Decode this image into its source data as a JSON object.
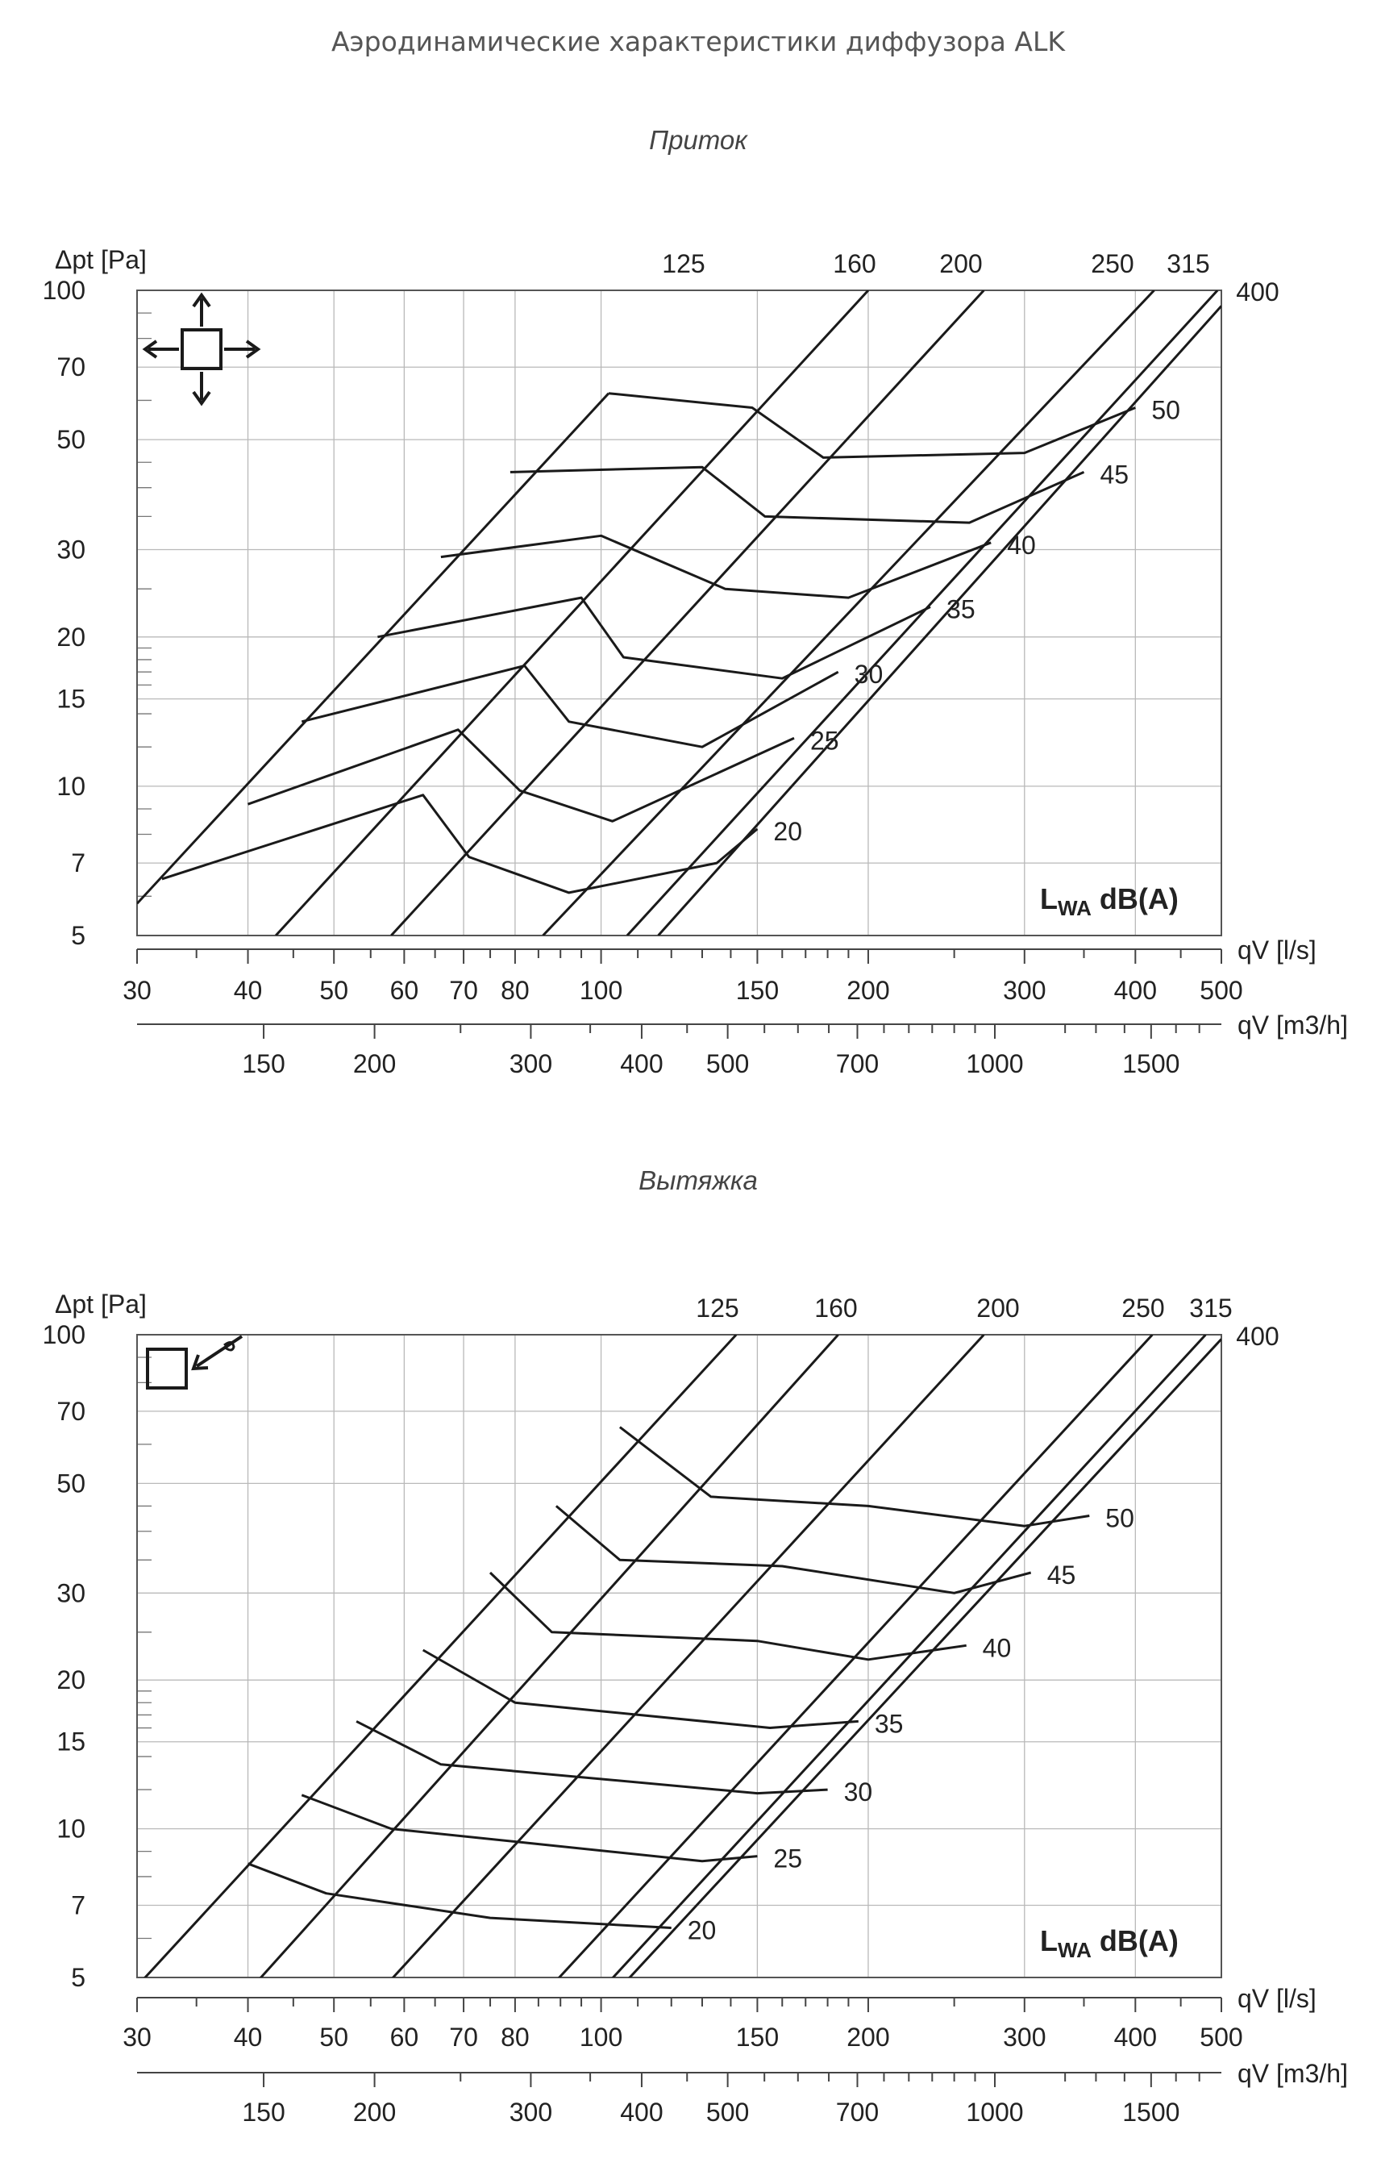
{
  "page": {
    "title": "Аэродинамические характеристики диффузора ALK"
  },
  "chart_data": [
    {
      "type": "line",
      "subtitle": "Приток",
      "xlabel": "qV [l/s]",
      "xlabel_m3h": "qV [m3/h]",
      "ylabel": "Δpt [Pa]",
      "x_scale": "log",
      "y_scale": "log",
      "xlim": [
        30,
        500
      ],
      "ylim": [
        5,
        100
      ],
      "grid": true,
      "x_ticks": [
        30,
        40,
        50,
        60,
        70,
        80,
        100,
        150,
        200,
        300,
        400,
        500
      ],
      "x_tick_labels": [
        "30",
        "40",
        "50",
        "60",
        "70",
        "80",
        "100",
        "150",
        "200",
        "300",
        "400",
        "500"
      ],
      "x_ticks_m3h": [
        150,
        200,
        300,
        400,
        500,
        700,
        1000,
        1500
      ],
      "x_tick_labels_m3h": [
        "150",
        "200",
        "300",
        "400",
        "500",
        "700",
        "1000",
        "1500"
      ],
      "y_ticks": [
        5,
        7,
        10,
        15,
        20,
        30,
        50,
        70,
        100
      ],
      "y_tick_labels": [
        "5",
        "7",
        "10",
        "15",
        "20",
        "30",
        "50",
        "70",
        "100"
      ],
      "legend_text": {
        "main": "L",
        "sub": "WA",
        "rest": " dB(A)"
      },
      "icon": "supply-arrows-icon",
      "size_series": [
        {
          "name": "125",
          "points": [
            [
              30,
              5.8
            ],
            [
              102,
              62
            ]
          ]
        },
        {
          "name": "160",
          "points": [
            [
              43,
              5
            ],
            [
              200,
              100
            ]
          ]
        },
        {
          "name": "200",
          "points": [
            [
              58,
              5
            ],
            [
              270,
              100
            ]
          ]
        },
        {
          "name": "250",
          "points": [
            [
              86,
              5
            ],
            [
              420,
              100
            ]
          ]
        },
        {
          "name": "315",
          "points": [
            [
              107,
              5
            ],
            [
              495,
              100
            ]
          ]
        },
        {
          "name": "400",
          "points": [
            [
              116,
              5
            ],
            [
              500,
              93
            ]
          ]
        }
      ],
      "size_labels": [
        "125",
        "160",
        "200",
        "250",
        "315",
        "400"
      ],
      "sound_series": [
        {
          "name": "50",
          "points": [
            [
              102,
              62
            ],
            [
              148,
              58
            ],
            [
              178,
              46
            ],
            [
              300,
              47
            ],
            [
              400,
              58
            ]
          ]
        },
        {
          "name": "45",
          "points": [
            [
              79,
              43
            ],
            [
              130,
              44
            ],
            [
              153,
              35
            ],
            [
              260,
              34
            ],
            [
              350,
              43
            ]
          ]
        },
        {
          "name": "40",
          "points": [
            [
              66,
              29
            ],
            [
              100,
              32
            ],
            [
              138,
              25
            ],
            [
              190,
              24
            ],
            [
              275,
              31
            ]
          ]
        },
        {
          "name": "35",
          "points": [
            [
              56,
              20
            ],
            [
              95,
              24
            ],
            [
              106,
              18.2
            ],
            [
              160,
              16.5
            ],
            [
              235,
              23
            ]
          ]
        },
        {
          "name": "30",
          "points": [
            [
              46,
              13.5
            ],
            [
              82,
              17.5
            ],
            [
              92,
              13.5
            ],
            [
              130,
              12
            ],
            [
              185,
              17
            ]
          ]
        },
        {
          "name": "25",
          "points": [
            [
              40,
              9.2
            ],
            [
              69,
              13
            ],
            [
              81,
              9.8
            ],
            [
              103,
              8.5
            ],
            [
              165,
              12.5
            ]
          ]
        },
        {
          "name": "20",
          "points": [
            [
              32,
              6.5
            ],
            [
              63,
              9.6
            ],
            [
              71,
              7.2
            ],
            [
              92,
              6.1
            ],
            [
              135,
              7
            ],
            [
              150,
              8.2
            ]
          ]
        }
      ],
      "sound_labels": [
        "50",
        "45",
        "40",
        "35",
        "30",
        "25",
        "20"
      ]
    },
    {
      "type": "line",
      "subtitle": "Вытяжка",
      "xlabel": "qV [l/s]",
      "xlabel_m3h": "qV [m3/h]",
      "ylabel": "Δpt [Pa]",
      "x_scale": "log",
      "y_scale": "log",
      "xlim": [
        30,
        500
      ],
      "ylim": [
        5,
        100
      ],
      "grid": true,
      "x_ticks": [
        30,
        40,
        50,
        60,
        70,
        80,
        100,
        150,
        200,
        300,
        400,
        500
      ],
      "x_tick_labels": [
        "30",
        "40",
        "50",
        "60",
        "70",
        "80",
        "100",
        "150",
        "200",
        "300",
        "400",
        "500"
      ],
      "x_ticks_m3h": [
        150,
        200,
        300,
        400,
        500,
        700,
        1000,
        1500
      ],
      "x_tick_labels_m3h": [
        "150",
        "200",
        "300",
        "400",
        "500",
        "700",
        "1000",
        "1500"
      ],
      "y_ticks": [
        5,
        7,
        10,
        15,
        20,
        30,
        50,
        70,
        100
      ],
      "y_tick_labels": [
        "5",
        "7",
        "10",
        "15",
        "20",
        "30",
        "50",
        "70",
        "100"
      ],
      "legend_text": {
        "main": "L",
        "sub": "WA",
        "rest": " dB(A)"
      },
      "icon": "extract-arrow-icon",
      "size_series": [
        {
          "name": "125",
          "points": [
            [
              30,
              4.8
            ],
            [
              142,
              100
            ]
          ]
        },
        {
          "name": "160",
          "points": [
            [
              37,
              4
            ],
            [
              185,
              100
            ]
          ]
        },
        {
          "name": "200",
          "points": [
            [
              52,
              4
            ],
            [
              270,
              100
            ]
          ]
        },
        {
          "name": "250",
          "points": [
            [
              80,
              4
            ],
            [
              418,
              100
            ]
          ]
        },
        {
          "name": "315",
          "points": [
            [
              92,
              4
            ],
            [
              480,
              100
            ]
          ]
        },
        {
          "name": "400",
          "points": [
            [
              96,
              4
            ],
            [
              500,
              98
            ]
          ]
        }
      ],
      "size_labels": [
        "125",
        "160",
        "200",
        "250",
        "315",
        "400"
      ],
      "sound_series": [
        {
          "name": "50",
          "points": [
            [
              105,
              65
            ],
            [
              133,
              47
            ],
            [
              200,
              45
            ],
            [
              300,
              41
            ],
            [
              355,
              43
            ]
          ]
        },
        {
          "name": "45",
          "points": [
            [
              89,
              45
            ],
            [
              105,
              35
            ],
            [
              160,
              34
            ],
            [
              250,
              30
            ],
            [
              305,
              33
            ]
          ]
        },
        {
          "name": "40",
          "points": [
            [
              75,
              33
            ],
            [
              88,
              25
            ],
            [
              150,
              24
            ],
            [
              200,
              22
            ],
            [
              258,
              23.5
            ]
          ]
        },
        {
          "name": "35",
          "points": [
            [
              63,
              23
            ],
            [
              80,
              18
            ],
            [
              155,
              16
            ],
            [
              195,
              16.5
            ]
          ]
        },
        {
          "name": "30",
          "points": [
            [
              53,
              16.5
            ],
            [
              66,
              13.5
            ],
            [
              150,
              11.8
            ],
            [
              180,
              12
            ]
          ]
        },
        {
          "name": "25",
          "points": [
            [
              46,
              11.7
            ],
            [
              58,
              10
            ],
            [
              130,
              8.6
            ],
            [
              150,
              8.8
            ]
          ]
        },
        {
          "name": "20",
          "points": [
            [
              40,
              8.5
            ],
            [
              49,
              7.4
            ],
            [
              75,
              6.6
            ],
            [
              120,
              6.3
            ]
          ]
        }
      ],
      "sound_labels": [
        "50",
        "45",
        "40",
        "35",
        "30",
        "25",
        "20"
      ]
    }
  ]
}
